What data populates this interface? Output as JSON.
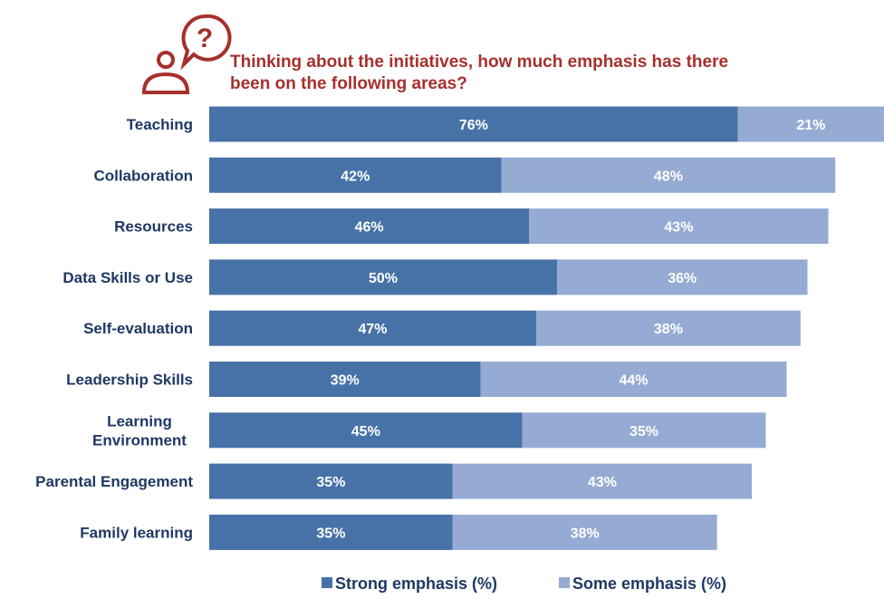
{
  "chart_data": {
    "type": "bar",
    "orientation": "horizontal",
    "stacked": true,
    "title": "Thinking about the initiatives, how much emphasis has there been on the following areas?",
    "title_lines": [
      "Thinking about the initiatives, how much emphasis has there",
      "been on the following areas?"
    ],
    "title_icon": "question-person-icon",
    "categories": [
      "Teaching",
      "Collaboration",
      "Resources",
      "Data Skills or Use",
      "Self-evaluation",
      "Leadership Skills",
      "Learning Environment",
      "Parental Engagement",
      "Family learning"
    ],
    "category_lines": [
      [
        "Teaching"
      ],
      [
        "Collaboration"
      ],
      [
        "Resources"
      ],
      [
        "Data Skills or Use"
      ],
      [
        "Self-evaluation"
      ],
      [
        "Leadership Skills"
      ],
      [
        "Learning",
        "Environment"
      ],
      [
        "Parental Engagement"
      ],
      [
        "Family learning"
      ]
    ],
    "series": [
      {
        "name": "Strong emphasis (%)",
        "color": "#4672a8",
        "values": [
          76,
          42,
          46,
          50,
          47,
          39,
          45,
          35,
          35
        ]
      },
      {
        "name": "Some emphasis (%)",
        "color": "#95abd3",
        "values": [
          21,
          48,
          43,
          36,
          38,
          44,
          35,
          43,
          38
        ]
      }
    ],
    "value_suffix": "%",
    "xlim": [
      0,
      97
    ],
    "grid": false,
    "legend_position": "bottom",
    "colors": {
      "title": "#a6302c",
      "labels": "#1f3864",
      "value_text": "#ffffff"
    }
  }
}
